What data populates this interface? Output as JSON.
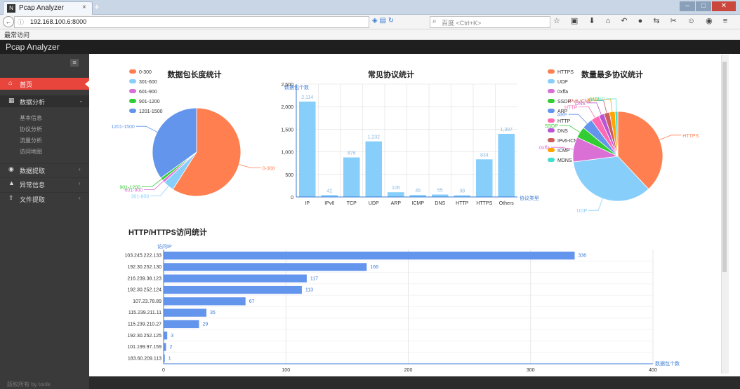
{
  "browser": {
    "tab_title": "Pcap Analyzer",
    "tab_close": "×",
    "new_tab": "+",
    "url": "192.168.100.6:8000",
    "search_placeholder": "百度 <Ctrl+K>",
    "bookmarks_label": "最常访问",
    "win_min": "–",
    "win_max": "□",
    "win_close": "✕"
  },
  "app": {
    "title": "Pcap Analyzer",
    "toggle": "≡"
  },
  "sidebar": {
    "home": "首页",
    "analysis": "数据分析",
    "analysis_subitems": [
      "基本信息",
      "协议分析",
      "流量分析",
      "访问地图"
    ],
    "extract": "数据提取",
    "alerts": "异常信息",
    "files": "文件提取",
    "footer": "版权所有 by tools"
  },
  "chart_data": [
    {
      "type": "pie",
      "title": "数据包长度统计",
      "categories": [
        "0-300",
        "301-600",
        "601-900",
        "901-1200",
        "1201-1500"
      ],
      "values": [
        59,
        4,
        1,
        1,
        35
      ],
      "colors": [
        "#ff7f50",
        "#87cefa",
        "#da70d6",
        "#32cd32",
        "#6495ed"
      ],
      "legend_position": "top-left"
    },
    {
      "type": "bar",
      "title": "常见协议统计",
      "ylabel": "数据包个数",
      "xlabel": "协议类型",
      "categories": [
        "IP",
        "IPv6",
        "TCP",
        "UDP",
        "ARP",
        "ICMP",
        "DNS",
        "HTTP",
        "HTTPS",
        "Others"
      ],
      "values": [
        2114,
        42,
        876,
        1232,
        106,
        45,
        55,
        38,
        834,
        1397
      ],
      "y_ticks": [
        "0",
        "500",
        "1,000",
        "1,500",
        "2,000",
        "2,500"
      ],
      "ylim": [
        0,
        2500
      ],
      "color": "#87cefa"
    },
    {
      "type": "pie",
      "title": "数量最多协议统计",
      "categories": [
        "HTTPS",
        "UDP",
        "0xffa",
        "SSDP",
        "ARP",
        "HTTP",
        "DNS",
        "IPv6-ICMP",
        "ICMP",
        "MDNS"
      ],
      "values": [
        38,
        35,
        9,
        4,
        4,
        3,
        2,
        2,
        2,
        1
      ],
      "colors": [
        "#ff7f50",
        "#87cefa",
        "#da70d6",
        "#32cd32",
        "#6495ed",
        "#ff69b4",
        "#ba55d3",
        "#cd5c5c",
        "#ffa500",
        "#40e0d0"
      ],
      "legend_position": "top-left"
    },
    {
      "type": "bar",
      "orientation": "horizontal",
      "title": "HTTP/HTTPS访问统计",
      "ylabel": "访问IP",
      "xlabel": "数据包个数",
      "categories": [
        "103.245.222.133",
        "192.30.252.130",
        "216.239.38.123",
        "192.30.252.124",
        "107.23.78.89",
        "115.239.211.11",
        "115.239.210.27",
        "192.30.252.125",
        "101.199.97.159",
        "183.60.209.113"
      ],
      "values": [
        336,
        166,
        117,
        113,
        67,
        35,
        29,
        3,
        2,
        1
      ],
      "x_ticks": [
        "0",
        "100",
        "200",
        "300",
        "400"
      ],
      "xlim": [
        0,
        400
      ],
      "color": "#6495ed"
    }
  ]
}
